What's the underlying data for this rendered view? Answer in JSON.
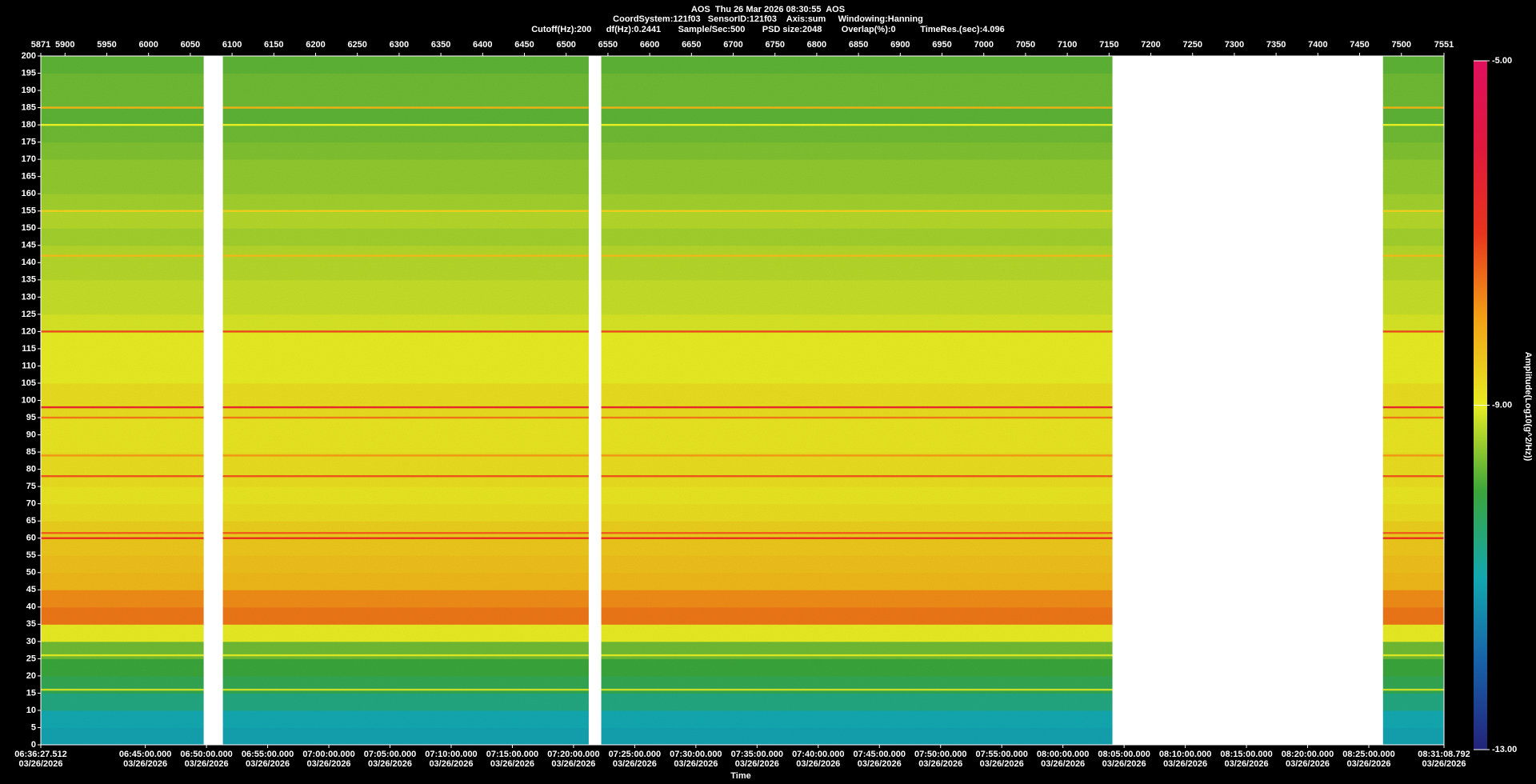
{
  "chart_data": {
    "type": "spectrogram",
    "title": "AOS  Thu 26 Mar 2026 08:30:55  AOS",
    "info": [
      "CoordSystem:121f03   SensorID:121f03    Axis:sum     Windowing:Hanning",
      "Cutoff(Hz):200      df(Hz):0.2441       Sample/Sec:500       PSD size:2048        Overlap(%):0          TimeRes.(sec):4.096"
    ],
    "xlabel": "Time",
    "colorbar_label": "Amplitude(Log10(g^2/Hz))",
    "xlim": [
      5871,
      7551
    ],
    "xticks": [
      5871,
      5900,
      5950,
      6000,
      6050,
      6100,
      6150,
      6200,
      6250,
      6300,
      6350,
      6400,
      6450,
      6500,
      6550,
      6600,
      6650,
      6700,
      6750,
      6800,
      6850,
      6900,
      6950,
      7000,
      7050,
      7100,
      7150,
      7200,
      7250,
      7300,
      7350,
      7400,
      7450,
      7500,
      7551
    ],
    "x2ticks": [
      {
        "value": 5871,
        "label": "06:36:27.512"
      },
      {
        "value": 5996.12,
        "label": "06:45:00.000"
      },
      {
        "value": 6069.36,
        "label": "06:50:00.000"
      },
      {
        "value": 6142.6,
        "label": "06:55:00.000"
      },
      {
        "value": 6215.85,
        "label": "07:00:00.000"
      },
      {
        "value": 6289.09,
        "label": "07:05:00.000"
      },
      {
        "value": 6362.33,
        "label": "07:10:00.000"
      },
      {
        "value": 6435.58,
        "label": "07:15:00.000"
      },
      {
        "value": 6508.82,
        "label": "07:20:00.000"
      },
      {
        "value": 6582.06,
        "label": "07:25:00.000"
      },
      {
        "value": 6655.3,
        "label": "07:30:00.000"
      },
      {
        "value": 6728.55,
        "label": "07:35:00.000"
      },
      {
        "value": 6801.79,
        "label": "07:40:00.000"
      },
      {
        "value": 6875.03,
        "label": "07:45:00.000"
      },
      {
        "value": 6948.28,
        "label": "07:50:00.000"
      },
      {
        "value": 7021.52,
        "label": "07:55:00.000"
      },
      {
        "value": 7094.76,
        "label": "08:00:00.000"
      },
      {
        "value": 7168,
        "label": "08:05:00.000"
      },
      {
        "value": 7241.25,
        "label": "08:10:00.000"
      },
      {
        "value": 7314.49,
        "label": "08:15:00.000"
      },
      {
        "value": 7387.73,
        "label": "08:20:00.000"
      },
      {
        "value": 7460.97,
        "label": "08:25:00.000"
      },
      {
        "value": 7551,
        "label": "08:31:08.792"
      }
    ],
    "date_label": "03/26/2026",
    "ylim": [
      0,
      200
    ],
    "yticks": [
      0,
      5,
      10,
      15,
      20,
      25,
      30,
      35,
      40,
      45,
      50,
      55,
      60,
      65,
      70,
      75,
      80,
      85,
      90,
      95,
      100,
      105,
      110,
      115,
      120,
      125,
      130,
      135,
      140,
      145,
      150,
      155,
      160,
      165,
      170,
      175,
      180,
      185,
      190,
      195,
      200
    ],
    "clim": [
      -13,
      -5
    ],
    "cticks": [
      {
        "value": -5,
        "label": "-5.00"
      },
      {
        "value": -9,
        "label": "-9.00"
      },
      {
        "value": -13,
        "label": "-13.00"
      }
    ],
    "colormap": [
      "#23237a",
      "#1760a8",
      "#12a8b0",
      "#3aa53a",
      "#e8ec22",
      "#f2a214",
      "#e8341c",
      "#e0183c",
      "#e0105e"
    ],
    "segments": [
      [
        5871,
        6066
      ],
      [
        6089,
        6527
      ],
      [
        6542,
        7154
      ],
      [
        7478,
        7551
      ]
    ],
    "frequency_bins": [
      0,
      5,
      10,
      15,
      20,
      25,
      30,
      35,
      40,
      45,
      50,
      55,
      60,
      65,
      70,
      75,
      80,
      85,
      90,
      95,
      100,
      105,
      110,
      115,
      120,
      125,
      130,
      135,
      140,
      145,
      150,
      155,
      160,
      165,
      170,
      175,
      180,
      185,
      190,
      195,
      200
    ],
    "amplitude": [
      -11.1,
      -11.0,
      -10.6,
      -10.2,
      -10.0,
      -9.7,
      -9.0,
      -7.6,
      -7.8,
      -8.3,
      -8.4,
      -8.5,
      -8.6,
      -8.8,
      -8.9,
      -8.8,
      -8.8,
      -8.9,
      -8.9,
      -8.8,
      -8.8,
      -9.0,
      -9.0,
      -9.0,
      -9.1,
      -9.2,
      -9.2,
      -9.3,
      -9.3,
      -9.4,
      -9.3,
      -9.4,
      -9.5,
      -9.5,
      -9.6,
      -9.7,
      -9.8,
      -9.7,
      -9.7,
      -9.8
    ],
    "tones": [
      {
        "frequency": 185,
        "amplitude": -8.2
      },
      {
        "frequency": 180,
        "amplitude": -9.0
      },
      {
        "frequency": 155,
        "amplitude": -8.6
      },
      {
        "frequency": 142,
        "amplitude": -8.3
      },
      {
        "frequency": 120,
        "amplitude": -7.2
      },
      {
        "frequency": 98,
        "amplitude": -6.6
      },
      {
        "frequency": 95,
        "amplitude": -7.6
      },
      {
        "frequency": 84,
        "amplitude": -7.9
      },
      {
        "frequency": 78,
        "amplitude": -7.3
      },
      {
        "frequency": 61.5,
        "amplitude": -7.4
      },
      {
        "frequency": 60,
        "amplitude": -6.9
      },
      {
        "frequency": 26,
        "amplitude": -9.1
      },
      {
        "frequency": 16,
        "amplitude": -9.2
      }
    ]
  }
}
